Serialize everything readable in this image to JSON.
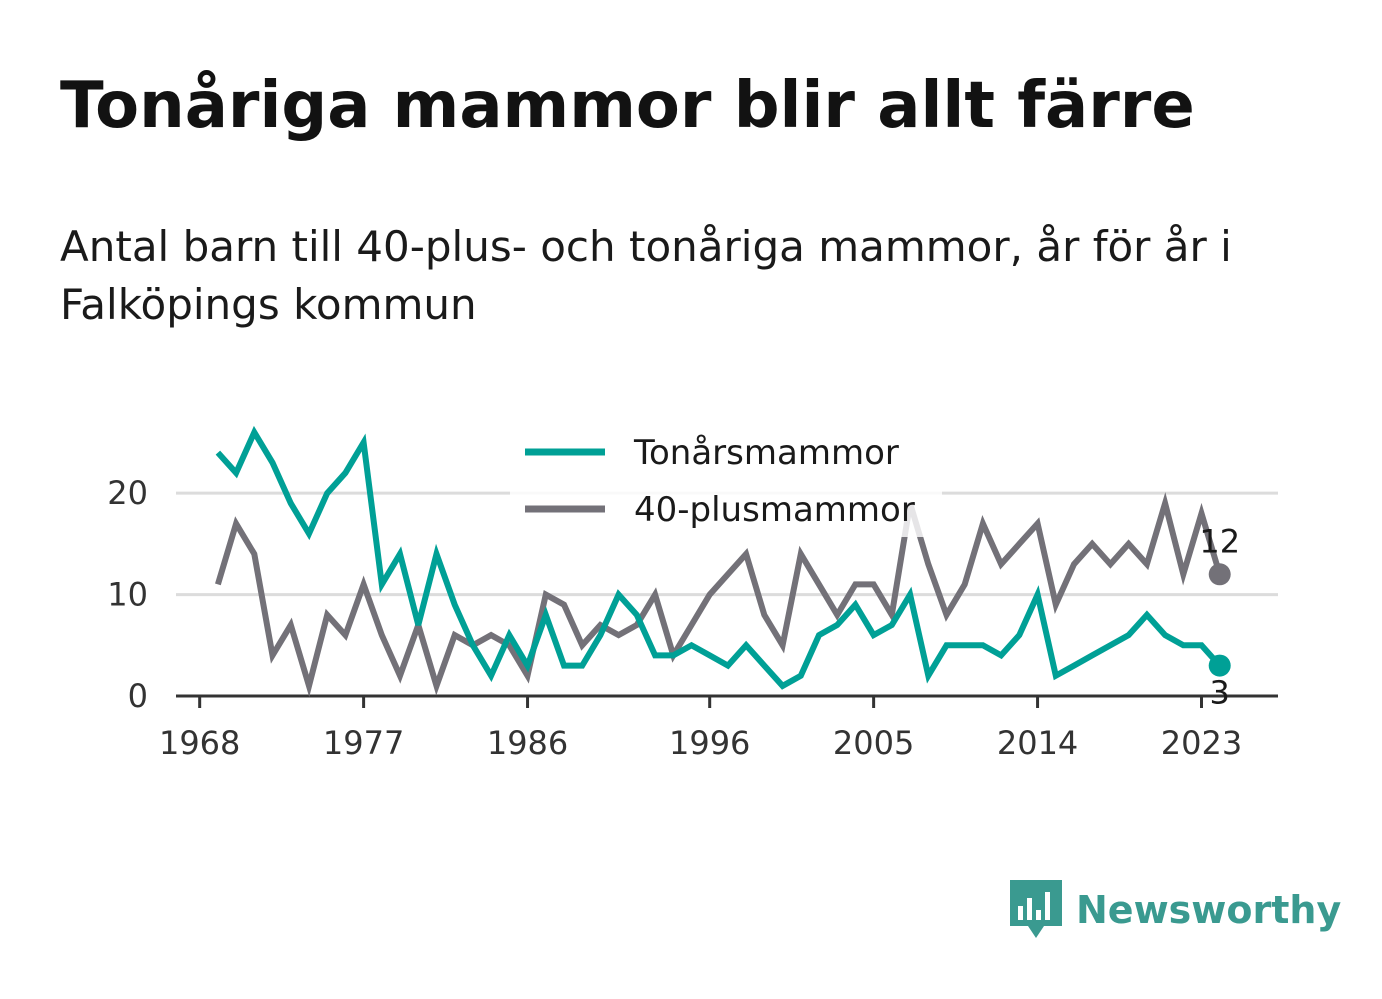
{
  "header": {
    "title": "Tonåriga mammor blir allt färre",
    "subtitle": "Antal barn till 40-plus- och tonåriga mammor, år för år i Falköpings kommun"
  },
  "brand": {
    "name": "Newsworthy",
    "icon": "bar-chart-speech-bubble-icon",
    "color": "#3a9a90"
  },
  "chart_data": {
    "type": "line",
    "title": "",
    "xlabel": "",
    "ylabel": "",
    "x_range": [
      1968,
      2024
    ],
    "ylim": [
      0,
      26
    ],
    "x_ticks": [
      1968,
      1977,
      1986,
      1996,
      2005,
      2014,
      2023
    ],
    "y_ticks": [
      0,
      10,
      20
    ],
    "grid": "horizontal",
    "legend_position": "top-center",
    "x": [
      1969,
      1970,
      1971,
      1972,
      1973,
      1974,
      1975,
      1976,
      1977,
      1978,
      1979,
      1980,
      1981,
      1982,
      1983,
      1984,
      1985,
      1986,
      1987,
      1988,
      1989,
      1990,
      1991,
      1992,
      1993,
      1994,
      1995,
      1996,
      1997,
      1998,
      1999,
      2000,
      2001,
      2002,
      2003,
      2004,
      2005,
      2006,
      2007,
      2008,
      2009,
      2010,
      2011,
      2012,
      2013,
      2014,
      2015,
      2016,
      2017,
      2018,
      2019,
      2020,
      2021,
      2022,
      2023,
      2024
    ],
    "series": [
      {
        "name": "Tonårsmammor",
        "color": "#00a096",
        "values": [
          24,
          22,
          26,
          23,
          19,
          16,
          20,
          22,
          25,
          11,
          14,
          7,
          14,
          9,
          5,
          2,
          6,
          3,
          8,
          3,
          3,
          6,
          10,
          8,
          4,
          4,
          5,
          4,
          3,
          5,
          3,
          1,
          2,
          6,
          7,
          9,
          6,
          7,
          10,
          2,
          5,
          5,
          5,
          4,
          6,
          10,
          2,
          3,
          4,
          5,
          6,
          8,
          6,
          5,
          5,
          3
        ],
        "end_label": "3"
      },
      {
        "name": "40-plusmammor",
        "color": "#737178",
        "values": [
          11,
          17,
          14,
          4,
          7,
          1,
          8,
          6,
          11,
          6,
          2,
          7,
          1,
          6,
          5,
          6,
          5,
          2,
          10,
          9,
          5,
          7,
          6,
          7,
          10,
          4,
          7,
          10,
          12,
          14,
          8,
          5,
          14,
          11,
          8,
          11,
          11,
          8,
          19,
          13,
          8,
          11,
          17,
          13,
          15,
          17,
          9,
          13,
          15,
          13,
          15,
          13,
          19,
          12,
          18,
          12
        ],
        "end_label": "12"
      }
    ]
  }
}
